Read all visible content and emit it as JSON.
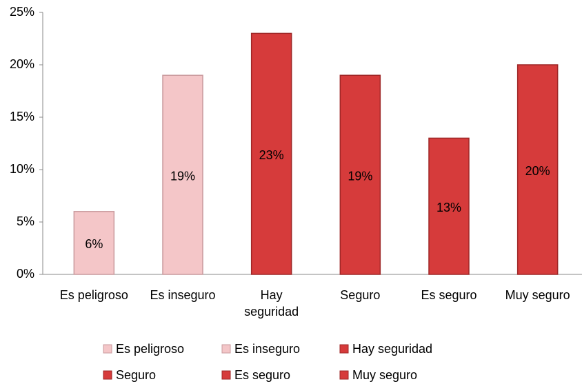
{
  "chart_data": {
    "type": "bar",
    "categories": [
      "Es peligroso",
      "Es inseguro",
      "Hay seguridad",
      "Seguro",
      "Es seguro",
      "Muy seguro"
    ],
    "values": [
      6,
      19,
      23,
      19,
      13,
      20
    ],
    "value_labels": [
      "6%",
      "19%",
      "23%",
      "19%",
      "13%",
      "20%"
    ],
    "colors": [
      "#f4c6c8",
      "#f4c6c8",
      "#d63b3b",
      "#d63b3b",
      "#d63b3b",
      "#d63b3b"
    ],
    "ylim": [
      0,
      25
    ],
    "yticks": [
      {
        "value": 0,
        "label": "0%"
      },
      {
        "value": 5,
        "label": "5%"
      },
      {
        "value": 10,
        "label": "10%"
      },
      {
        "value": 15,
        "label": "15%"
      },
      {
        "value": 20,
        "label": "20%"
      },
      {
        "value": 25,
        "label": "25%"
      }
    ],
    "grid": false
  }
}
